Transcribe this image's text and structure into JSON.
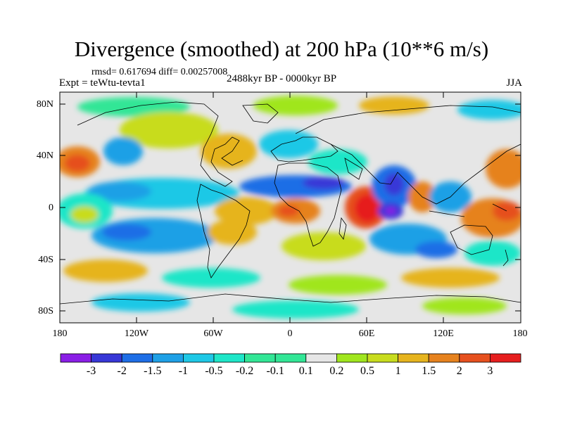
{
  "title": "Divergence (smoothed) at 200 hPa (10**6 m/s)",
  "stats_text": "rmsd= 0.617694 diff= 0.00257008",
  "experiment": "Expt = teWtu-tevta1",
  "period": "2488kyr BP - 0000kyr BP",
  "season": "JJA",
  "lat_labels": [
    "80N",
    "40N",
    "0",
    "40S",
    "80S"
  ],
  "lon_labels": [
    "180",
    "120W",
    "60W",
    "0",
    "60E",
    "120E",
    "180"
  ],
  "colorbar": {
    "labels": [
      "-3",
      "-2",
      "-1.5",
      "-1",
      "-0.5",
      "-0.2",
      "-0.1",
      "0.1",
      "0.2",
      "0.5",
      "1",
      "1.5",
      "2",
      "3"
    ],
    "colors": [
      "#8a1ee6",
      "#3737d7",
      "#1e6ee6",
      "#1ea0e6",
      "#1ec8e6",
      "#1ee6c8",
      "#32e696",
      "#e6e6e6",
      "#a0e61e",
      "#c8dc1e",
      "#e6b41e",
      "#e6821e",
      "#e6501e",
      "#e61e1e"
    ]
  }
}
